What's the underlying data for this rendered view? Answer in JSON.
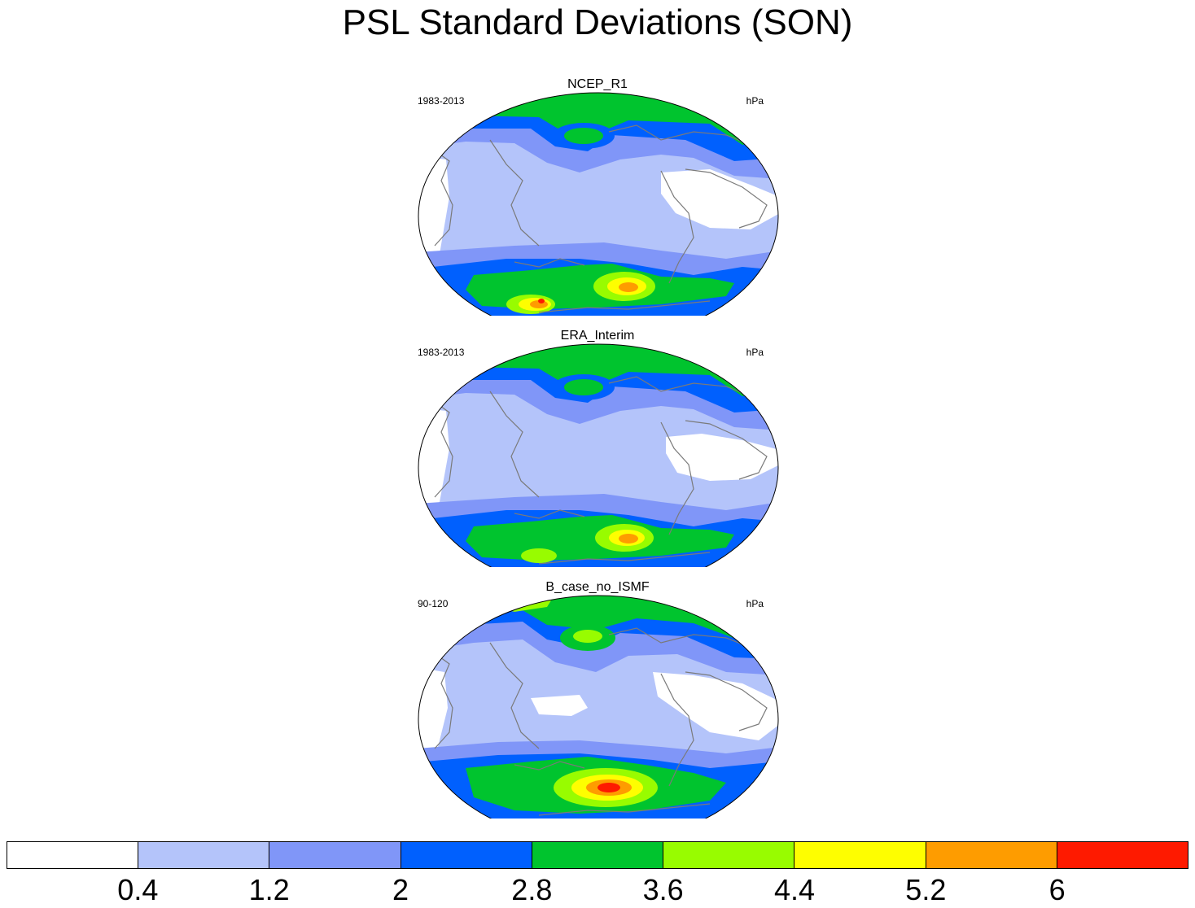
{
  "title": "PSL Standard Deviations (SON)",
  "panels": [
    {
      "title": "NCEP_R1",
      "left_label": "1983-2013",
      "right_label": "hPa"
    },
    {
      "title": "ERA_Interim",
      "left_label": "1983-2013",
      "right_label": "hPa"
    },
    {
      "title": "B_case_no_ISMF",
      "left_label": "90-120",
      "right_label": "hPa"
    }
  ],
  "colorbar": {
    "levels": [
      "0.4",
      "1.2",
      "2",
      "2.8",
      "3.6",
      "4.4",
      "5.2",
      "6"
    ],
    "colors": [
      "#ffffff",
      "#b4c4fa",
      "#8096f8",
      "#0060fe",
      "#00c42e",
      "#98fc00",
      "#fefe00",
      "#fe9c00",
      "#fe1a00"
    ]
  }
}
